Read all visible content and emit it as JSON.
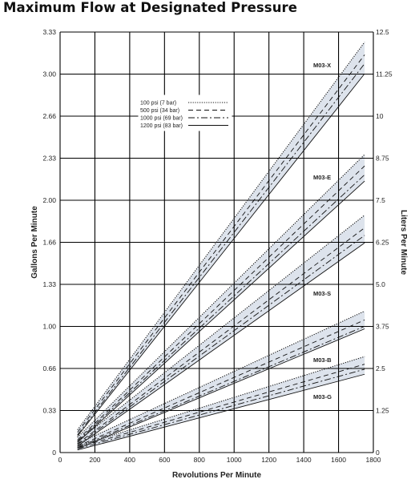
{
  "chart_data": {
    "type": "line",
    "title": "Maximum Flow at Designated Pressure",
    "xlabel": "Revolutions Per Minute",
    "ylabel_left": "Gallons Per Minute",
    "ylabel_right": "Liters Per Minute",
    "xlim": [
      0,
      1800
    ],
    "ylim": [
      0,
      3.33
    ],
    "x_ticks": [
      "0",
      "200",
      "400",
      "600",
      "800",
      "1000",
      "1200",
      "1400",
      "1600",
      "1800"
    ],
    "y_ticks_left": [
      "0",
      "0.33",
      "0.66",
      "1.00",
      "1.33",
      "1.66",
      "2.00",
      "2.33",
      "2.66",
      "3.00",
      "3.33"
    ],
    "y_ticks_right": [
      "0",
      "1.25",
      "2.5",
      "3.75",
      "5.0",
      "6.25",
      "7.5",
      "8.75",
      "10",
      "11.25",
      "12.5"
    ],
    "grid": true,
    "legend_position": "top-left",
    "legend": [
      {
        "label": "100 psi (7 bar)",
        "style": "dotted"
      },
      {
        "label": "500 psi (34 bar)",
        "style": "dashed"
      },
      {
        "label": "1000 psi (69 bar)",
        "style": "dash-dot"
      },
      {
        "label": "1200 psi (83 bar)",
        "style": "solid"
      }
    ],
    "band_color": "#dde3ec",
    "models": [
      {
        "name": "M03-X",
        "x": [
          100,
          1750
        ],
        "series": [
          {
            "pressure": "100 psi (7 bar)",
            "y": [
              0.18,
              3.25
            ]
          },
          {
            "pressure": "500 psi (34 bar)",
            "y": [
              0.16,
              3.15
            ]
          },
          {
            "pressure": "1000 psi (69 bar)",
            "y": [
              0.14,
              3.08
            ]
          },
          {
            "pressure": "1200 psi (83 bar)",
            "y": [
              0.13,
              3.0
            ]
          }
        ]
      },
      {
        "name": "M03-E",
        "x": [
          100,
          1750
        ],
        "series": [
          {
            "pressure": "100 psi (7 bar)",
            "y": [
              0.12,
              2.36
            ]
          },
          {
            "pressure": "500 psi (34 bar)",
            "y": [
              0.1,
              2.27
            ]
          },
          {
            "pressure": "1000 psi (69 bar)",
            "y": [
              0.09,
              2.2
            ]
          },
          {
            "pressure": "1200 psi (83 bar)",
            "y": [
              0.08,
              2.15
            ]
          }
        ]
      },
      {
        "name": "M03-S",
        "x": [
          100,
          1750
        ],
        "series": [
          {
            "pressure": "100 psi (7 bar)",
            "y": [
              0.09,
              1.88
            ]
          },
          {
            "pressure": "500 psi (34 bar)",
            "y": [
              0.07,
              1.78
            ]
          },
          {
            "pressure": "1000 psi (69 bar)",
            "y": [
              0.06,
              1.72
            ]
          },
          {
            "pressure": "1200 psi (83 bar)",
            "y": [
              0.05,
              1.66
            ]
          }
        ]
      },
      {
        "name": "M03-B",
        "x": [
          100,
          1750
        ],
        "series": [
          {
            "pressure": "100 psi (7 bar)",
            "y": [
              0.07,
              1.12
            ]
          },
          {
            "pressure": "500 psi (34 bar)",
            "y": [
              0.05,
              1.05
            ]
          },
          {
            "pressure": "1000 psi (69 bar)",
            "y": [
              0.04,
              1.0
            ]
          },
          {
            "pressure": "1200 psi (83 bar)",
            "y": [
              0.03,
              0.98
            ]
          }
        ]
      },
      {
        "name": "M03-G",
        "x": [
          100,
          1750
        ],
        "series": [
          {
            "pressure": "100 psi (7 bar)",
            "y": [
              0.05,
              0.76
            ]
          },
          {
            "pressure": "500 psi (34 bar)",
            "y": [
              0.04,
              0.7
            ]
          },
          {
            "pressure": "1000 psi (69 bar)",
            "y": [
              0.03,
              0.66
            ]
          },
          {
            "pressure": "1200 psi (83 bar)",
            "y": [
              0.02,
              0.62
            ]
          }
        ]
      }
    ]
  }
}
